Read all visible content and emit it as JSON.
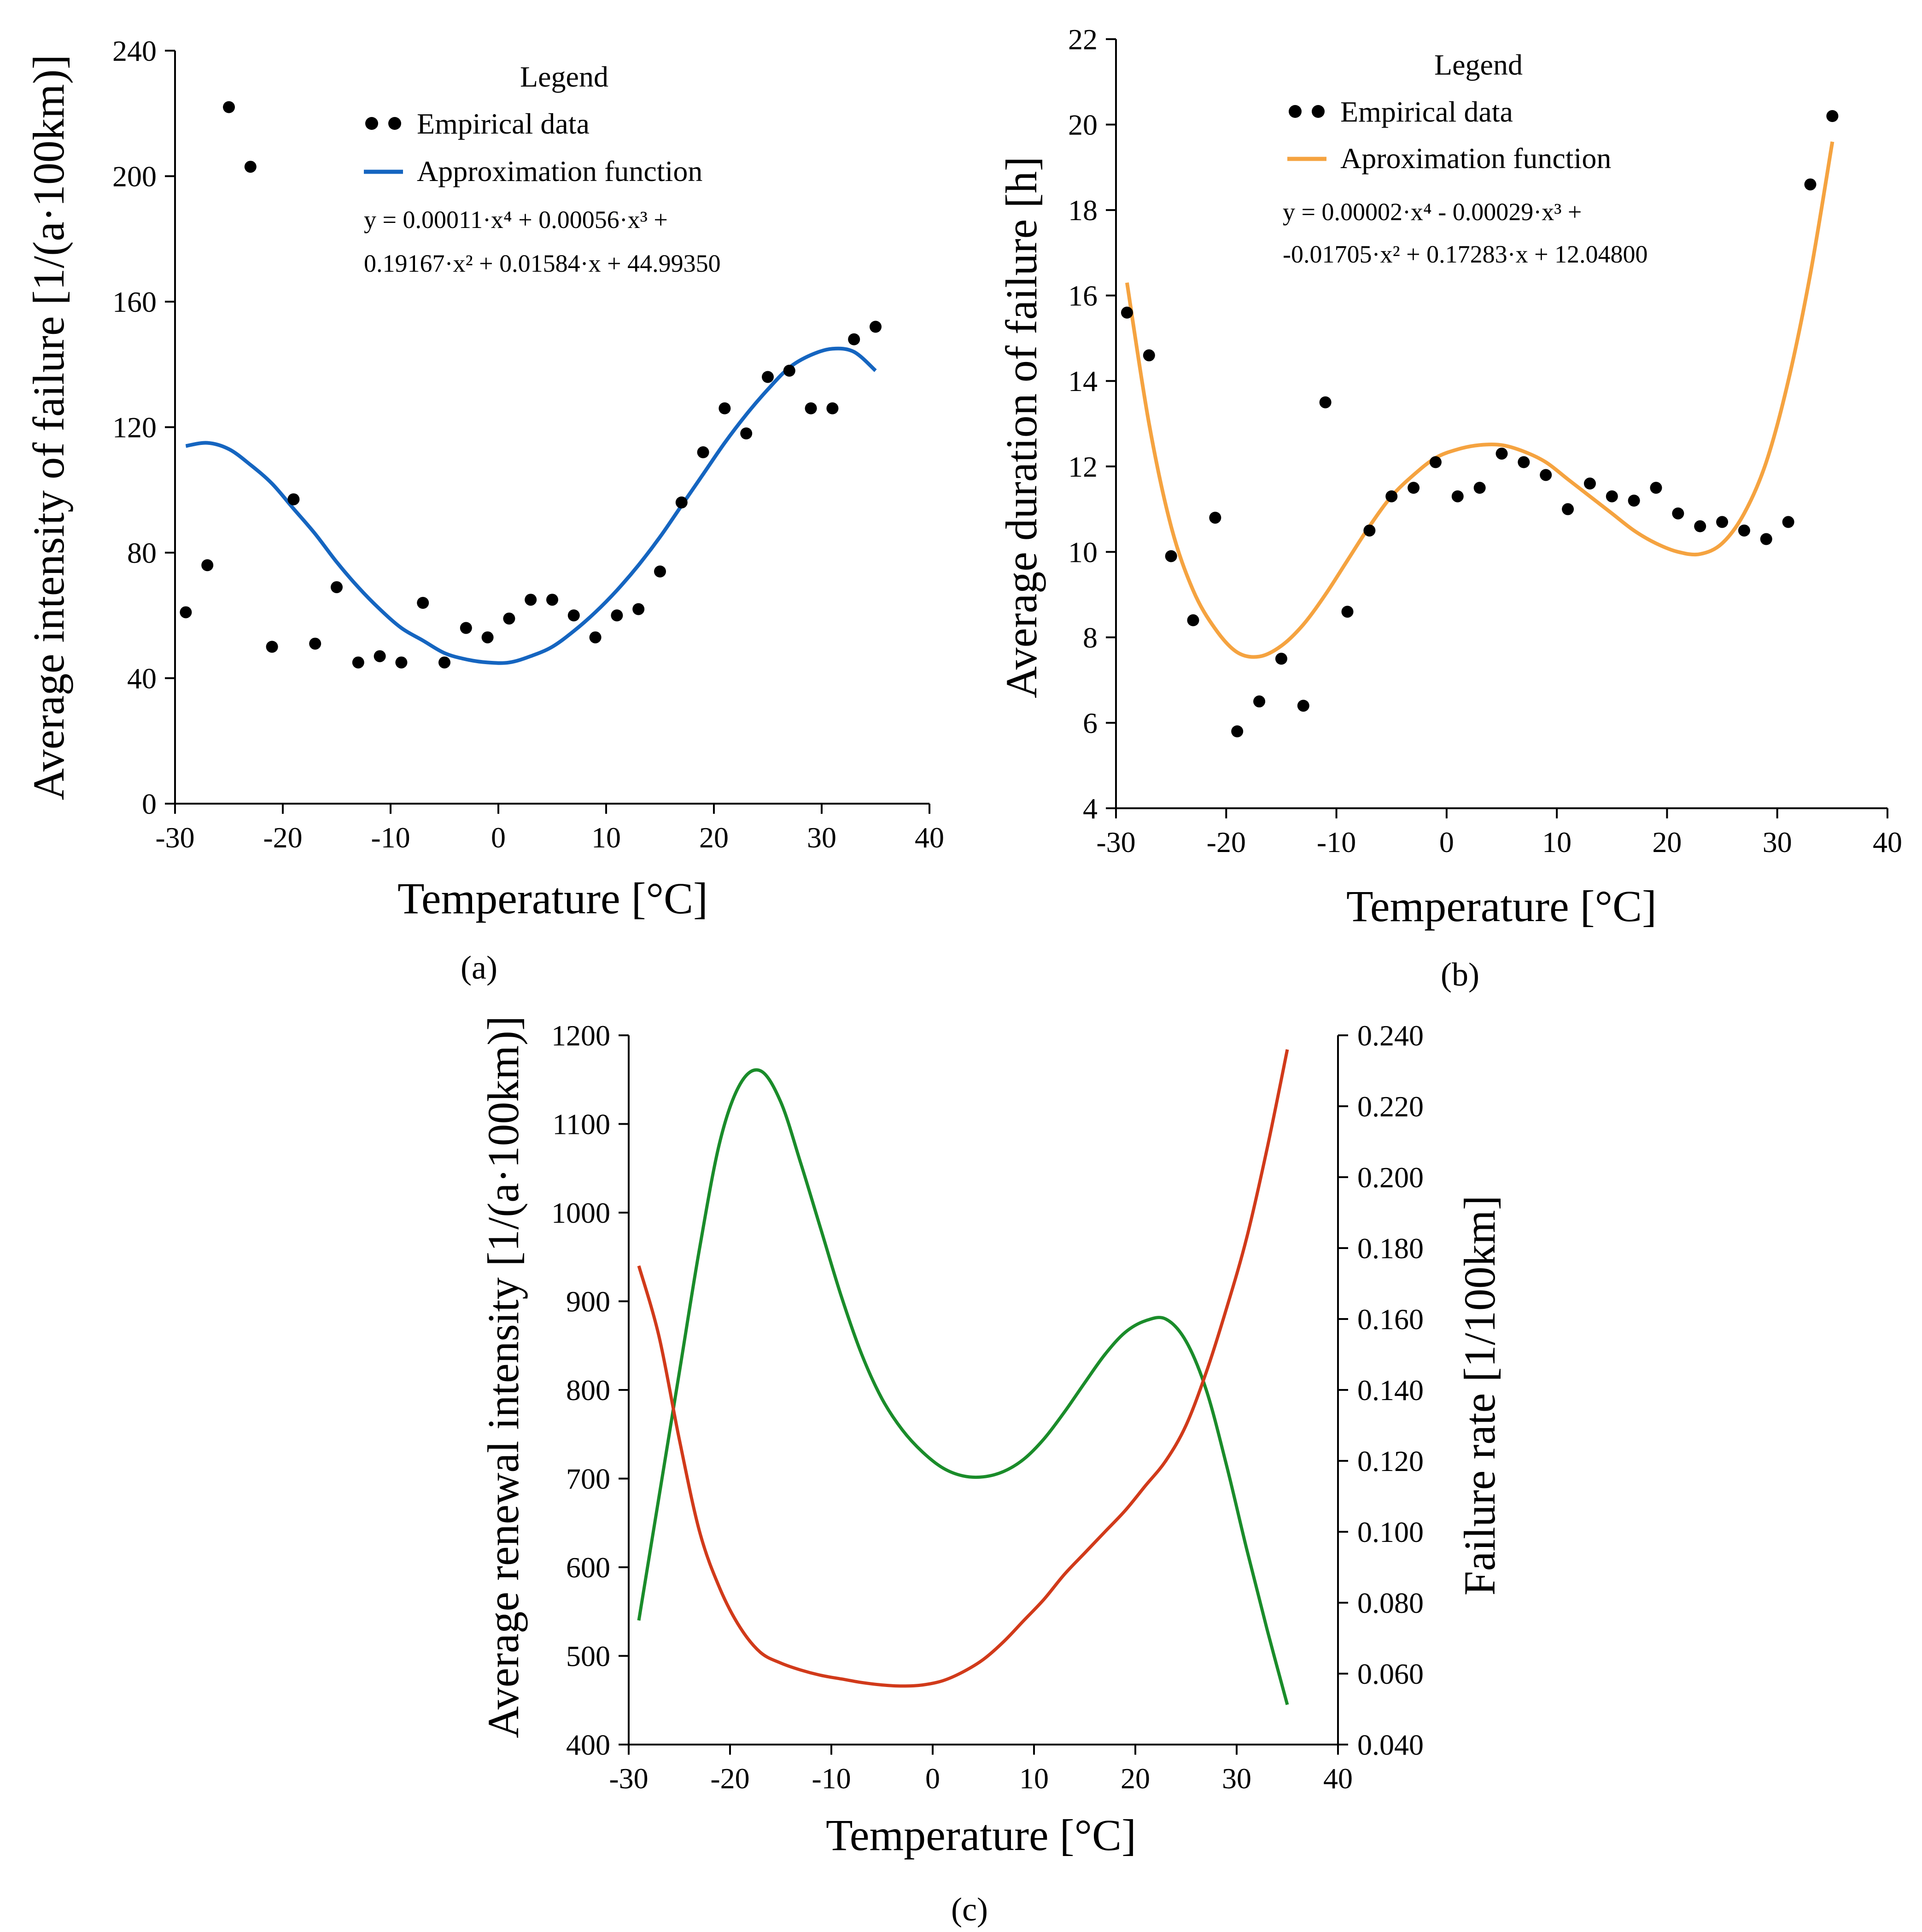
{
  "colors": {
    "blue": "#1565c0",
    "orange": "#f5a340",
    "green": "#1a8c2a",
    "red": "#d13a1a",
    "red_label": "#e02020",
    "points": "#000000"
  },
  "chart_data": [
    {
      "id": "a",
      "type": "scatter",
      "panel_label": "(a)",
      "title": "",
      "xlabel": "Temperature [°C]",
      "ylabel": "Average intensity of failure [1/(a·100km)]",
      "xlim": [
        -30,
        40
      ],
      "ylim": [
        0,
        240
      ],
      "xticks": [
        -30,
        -20,
        -10,
        0,
        10,
        20,
        30,
        40
      ],
      "yticks": [
        0,
        40,
        80,
        120,
        160,
        200,
        240
      ],
      "xtick_labels": [
        "-30",
        "-20",
        "-10",
        "0",
        "10",
        "20",
        "30",
        "40"
      ],
      "ytick_labels": [
        "0",
        "40",
        "80",
        "120",
        "160",
        "200",
        "240"
      ],
      "legend": {
        "title": "Legend",
        "empirical": "Empirical data",
        "fit": "Approximation function",
        "eq_line1": "y = 0.00011·x⁴ + 0.00056·x³ +",
        "eq_line2": "0.19167·x² + 0.01584·x + 44.99350"
      },
      "empirical": {
        "x": [
          -29,
          -27,
          -25,
          -23,
          -21,
          -19,
          -17,
          -15,
          -13,
          -11,
          -9,
          -7,
          -5,
          -3,
          -1,
          1,
          3,
          5,
          7,
          9,
          11,
          13,
          15,
          17,
          19,
          21,
          23,
          25,
          27,
          29,
          31,
          33,
          35
        ],
        "y": [
          61,
          76,
          222,
          203,
          50,
          97,
          51,
          69,
          45,
          47,
          45,
          64,
          45,
          56,
          53,
          59,
          65,
          65,
          60,
          53,
          60,
          62,
          74,
          96,
          112,
          126,
          118,
          136,
          138,
          126,
          126,
          148,
          152
        ]
      },
      "fit": {
        "x": [
          -29,
          -27,
          -25,
          -23,
          -21,
          -19,
          -17,
          -15,
          -13,
          -11,
          -9,
          -7,
          -5,
          -3,
          -1,
          1,
          3,
          5,
          7,
          9,
          11,
          13,
          15,
          17,
          19,
          21,
          23,
          25,
          27,
          29,
          31,
          33,
          35
        ],
        "y": [
          114,
          115,
          113,
          108,
          102,
          94,
          86,
          77,
          69,
          62,
          56,
          52,
          48,
          46,
          45,
          45,
          47,
          50,
          55,
          61,
          68,
          76,
          85,
          95,
          105,
          115,
          124,
          132,
          139,
          143,
          145,
          144,
          138
        ]
      }
    },
    {
      "id": "b",
      "type": "scatter",
      "panel_label": "(b)",
      "title": "",
      "xlabel": "Temperature  [°C]",
      "ylabel": "Average duration of failure [h]",
      "xlim": [
        -30,
        40
      ],
      "ylim": [
        4,
        22
      ],
      "xticks": [
        -30,
        -20,
        -10,
        0,
        10,
        20,
        30,
        40
      ],
      "yticks": [
        4,
        6,
        8,
        10,
        12,
        14,
        16,
        18,
        20,
        22
      ],
      "xtick_labels": [
        "-30",
        "-20",
        "-10",
        "0",
        "10",
        "20",
        "30",
        "40"
      ],
      "ytick_labels": [
        "4",
        "6",
        "8",
        "10",
        "12",
        "14",
        "16",
        "18",
        "20",
        "22"
      ],
      "legend": {
        "title": "Legend",
        "empirical": "Empirical data",
        "fit": "Aproximation function",
        "eq_line1": "y = 0.00002·x⁴ - 0.00029·x³ +",
        "eq_line2": "-0.01705·x² + 0.17283·x + 12.04800"
      },
      "empirical": {
        "x": [
          -29,
          -27,
          -25,
          -23,
          -21,
          -19,
          -17,
          -15,
          -13,
          -11,
          -9,
          -7,
          -5,
          -3,
          -1,
          1,
          3,
          5,
          7,
          9,
          11,
          13,
          15,
          17,
          19,
          21,
          23,
          25,
          27,
          29,
          31,
          33,
          35
        ],
        "y": [
          15.6,
          14.6,
          9.9,
          8.4,
          10.8,
          5.8,
          6.5,
          7.5,
          6.4,
          13.5,
          8.6,
          10.5,
          11.3,
          11.5,
          12.1,
          11.3,
          11.5,
          12.3,
          12.1,
          11.8,
          11.0,
          11.6,
          11.3,
          11.2,
          11.5,
          10.9,
          10.6,
          10.7,
          10.5,
          10.3,
          10.7,
          18.6,
          20.2
        ]
      },
      "fit": {
        "x": [
          -29,
          -27,
          -25,
          -23,
          -21,
          -19,
          -17,
          -15,
          -13,
          -11,
          -9,
          -7,
          -5,
          -3,
          -1,
          1,
          3,
          5,
          7,
          9,
          11,
          13,
          15,
          17,
          19,
          21,
          23,
          25,
          27,
          29,
          31,
          33,
          35
        ],
        "y": [
          16.3,
          13.0,
          10.6,
          9.1,
          8.2,
          7.65,
          7.55,
          7.8,
          8.3,
          9.0,
          9.8,
          10.6,
          11.3,
          11.8,
          12.2,
          12.4,
          12.5,
          12.5,
          12.35,
          12.1,
          11.7,
          11.3,
          10.9,
          10.5,
          10.2,
          10.0,
          9.95,
          10.2,
          10.9,
          12.1,
          14.0,
          16.5,
          19.6
        ]
      }
    },
    {
      "id": "c",
      "type": "line",
      "panel_label": "(c)",
      "title": "",
      "xlabel": "Temperature [°C]",
      "ylabel_left": "Average renewal intensity [1/(a·100km)]",
      "ylabel_right": "Failure rate [1/100km]",
      "xlim": [
        -30,
        40
      ],
      "ylim_left": [
        400,
        1200
      ],
      "ylim_right": [
        0.04,
        0.24
      ],
      "xticks": [
        -30,
        -20,
        -10,
        0,
        10,
        20,
        30,
        40
      ],
      "yticks_left": [
        400,
        500,
        600,
        700,
        800,
        900,
        1000,
        1100,
        1200
      ],
      "yticks_right": [
        0.04,
        0.06,
        0.08,
        0.1,
        0.12,
        0.14,
        0.16,
        0.18,
        0.2,
        0.22,
        0.24
      ],
      "xtick_labels": [
        "-30",
        "-20",
        "-10",
        "0",
        "10",
        "20",
        "30",
        "40"
      ],
      "ytick_labels_left": [
        "400",
        "500",
        "600",
        "700",
        "800",
        "900",
        "1000",
        "1100",
        "1200"
      ],
      "ytick_labels_right": [
        "0.040",
        "0.060",
        "0.080",
        "0.100",
        "0.120",
        "0.140",
        "0.160",
        "0.180",
        "0.200",
        "0.220",
        "0.240"
      ],
      "series": [
        {
          "name": "Average renewal intensity",
          "axis": "left",
          "x": [
            -29,
            -27,
            -25,
            -23,
            -21,
            -19,
            -17,
            -15,
            -13,
            -11,
            -9,
            -7,
            -5,
            -3,
            -1,
            1,
            3,
            5,
            7,
            9,
            11,
            13,
            15,
            17,
            19,
            21,
            23,
            25,
            27,
            29,
            31,
            33,
            35
          ],
          "values": [
            540,
            680,
            820,
            960,
            1080,
            1145,
            1160,
            1125,
            1055,
            980,
            905,
            840,
            790,
            755,
            730,
            712,
            703,
            702,
            708,
            722,
            745,
            775,
            808,
            840,
            865,
            878,
            880,
            855,
            800,
            715,
            620,
            530,
            445
          ]
        },
        {
          "name": "Failure rate",
          "axis": "right",
          "x": [
            -29,
            -27,
            -25,
            -23,
            -21,
            -19,
            -17,
            -15,
            -13,
            -11,
            -9,
            -7,
            -5,
            -3,
            -1,
            1,
            3,
            5,
            7,
            9,
            11,
            13,
            15,
            17,
            19,
            21,
            23,
            25,
            27,
            29,
            31,
            33,
            35
          ],
          "values": [
            0.175,
            0.155,
            0.126,
            0.1,
            0.084,
            0.073,
            0.066,
            0.063,
            0.061,
            0.0595,
            0.0585,
            0.0575,
            0.0568,
            0.0565,
            0.0568,
            0.058,
            0.0605,
            0.064,
            0.069,
            0.075,
            0.081,
            0.088,
            0.094,
            0.1,
            0.106,
            0.113,
            0.12,
            0.13,
            0.145,
            0.163,
            0.183,
            0.208,
            0.236
          ]
        }
      ]
    }
  ]
}
